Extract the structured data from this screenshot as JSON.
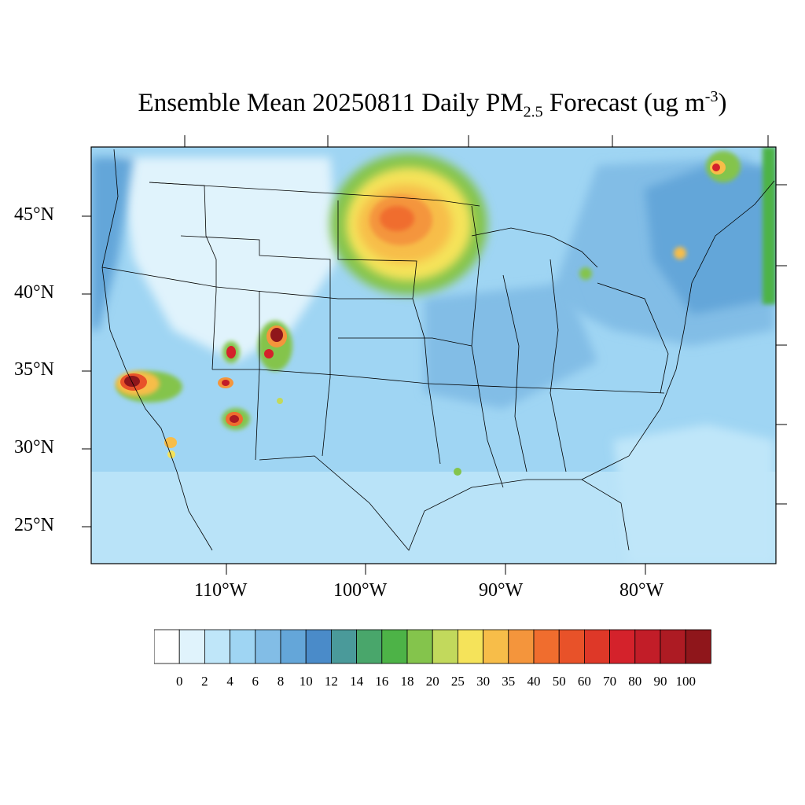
{
  "title": {
    "main": "Ensemble Mean 20250811 Daily PM",
    "sub": "2.5",
    "after": " Forecast (ug m",
    "sup": "-3",
    "close": ")"
  },
  "map": {
    "lat_labels": [
      "45°N",
      "40°N",
      "35°N",
      "30°N",
      "25°N"
    ],
    "lon_labels": [
      "110°W",
      "100°W",
      "90°W",
      "80°W"
    ],
    "plumes": [
      {
        "name": "north-dakota-smoke",
        "level": 45
      },
      {
        "name": "southern-california-fire",
        "level": 100
      },
      {
        "name": "new-mexico-fire",
        "level": 100
      },
      {
        "name": "arizona-fire-north",
        "level": 90
      },
      {
        "name": "arizona-fire-south",
        "level": 90
      },
      {
        "name": "quebec-fire",
        "level": 80
      }
    ]
  },
  "colorbar": {
    "labels": [
      "0",
      "2",
      "4",
      "6",
      "8",
      "10",
      "12",
      "14",
      "16",
      "18",
      "20",
      "25",
      "30",
      "35",
      "40",
      "50",
      "60",
      "70",
      "80",
      "90",
      "100"
    ],
    "colors": [
      "#ffffff",
      "#e0f3fc",
      "#bfe6f9",
      "#9fd5f3",
      "#82bde6",
      "#64a6d9",
      "#4a8bc9",
      "#4a9a9a",
      "#49a66b",
      "#4db347",
      "#84c44c",
      "#c2d95c",
      "#f5e35a",
      "#f7bd49",
      "#f4953c",
      "#f06d2e",
      "#e85229",
      "#de3828",
      "#d4222b",
      "#c21d28",
      "#ad1b23",
      "#8f161b"
    ]
  }
}
